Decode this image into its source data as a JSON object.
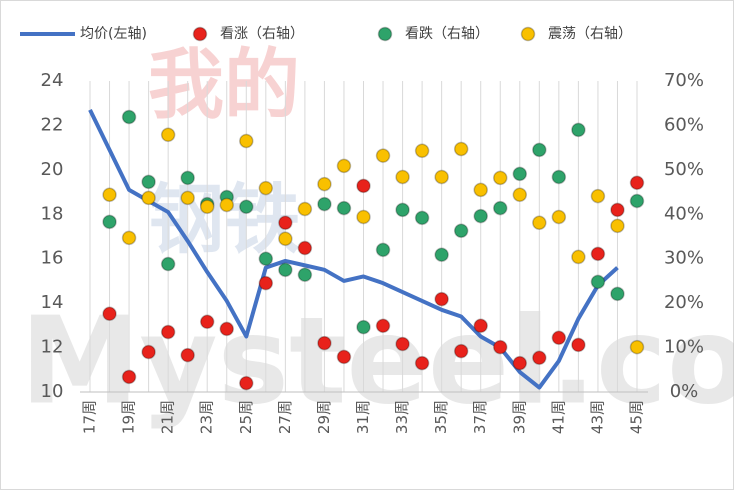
{
  "chart_data": {
    "type": "line_scatter",
    "watermark": [
      "我的",
      "钢铁",
      "Mysteel.com"
    ],
    "categories": [
      "17周",
      null,
      "19周",
      null,
      "21周",
      null,
      "23周",
      null,
      "25周",
      null,
      "27周",
      null,
      "29周",
      null,
      "31周",
      null,
      "33周",
      null,
      "35周",
      null,
      "37周",
      null,
      "39周",
      null,
      "41周",
      null,
      "43周",
      null,
      "45周"
    ],
    "series": [
      {
        "name": "均价(左轴)",
        "type": "line",
        "axis": "y",
        "color": "#4472c4",
        "values": [
          22.7,
          20.9,
          19.1,
          18.6,
          18.1,
          16.8,
          15.4,
          14.1,
          12.5,
          15.6,
          15.9,
          15.7,
          15.5,
          15.0,
          15.2,
          14.9,
          14.5,
          14.1,
          13.7,
          13.4,
          12.5,
          12.0,
          10.9,
          10.2,
          11.4,
          13.3,
          14.8,
          15.6,
          null
        ]
      },
      {
        "name": "看涨（右轴）",
        "type": "scatter",
        "axis": "y2",
        "color": "#e8221b",
        "values": [
          null,
          17.6,
          3.4,
          9.0,
          13.5,
          8.3,
          15.8,
          14.2,
          2.0,
          24.5,
          38.1,
          32.4,
          11.0,
          7.9,
          46.4,
          14.9,
          10.8,
          6.5,
          20.9,
          9.2,
          14.9,
          10.1,
          6.5,
          7.7,
          12.2,
          10.6,
          31.1,
          41.0,
          47.1
        ]
      },
      {
        "name": "看跌（右轴）",
        "type": "scatter",
        "axis": "y2",
        "color": "#2ea36a",
        "values": [
          null,
          38.3,
          61.9,
          47.3,
          28.8,
          48.2,
          42.3,
          43.9,
          41.7,
          30.0,
          27.5,
          26.4,
          42.3,
          41.4,
          14.6,
          32.0,
          41.0,
          39.2,
          30.9,
          36.3,
          39.6,
          41.4,
          49.1,
          54.5,
          48.4,
          59.0,
          24.8,
          22.1,
          43.0
        ]
      },
      {
        "name": "震荡（右轴）",
        "type": "scatter",
        "axis": "y2",
        "color": "#f9c000",
        "values": [
          null,
          44.4,
          34.7,
          43.7,
          57.9,
          43.7,
          41.7,
          42.1,
          56.5,
          45.9,
          34.5,
          41.2,
          46.8,
          50.9,
          39.4,
          53.2,
          48.4,
          54.3,
          48.4,
          54.7,
          45.5,
          48.2,
          44.4,
          38.1,
          39.4,
          30.4,
          44.1,
          37.4,
          10.1
        ]
      }
    ],
    "ylim": [
      10,
      24
    ],
    "yticks": [
      10,
      12,
      14,
      16,
      18,
      20,
      22,
      24
    ],
    "y2lim": [
      0,
      70
    ],
    "y2ticks": [
      {
        "value": 0,
        "label": "0%"
      },
      {
        "value": 10,
        "label": "10%"
      },
      {
        "value": 20,
        "label": "20%"
      },
      {
        "value": 30,
        "label": "30%"
      },
      {
        "value": 40,
        "label": "40%"
      },
      {
        "value": 50,
        "label": "50%"
      },
      {
        "value": 60,
        "label": "60%"
      },
      {
        "value": 70,
        "label": "70%"
      }
    ],
    "grid": "x",
    "legend": "top"
  }
}
